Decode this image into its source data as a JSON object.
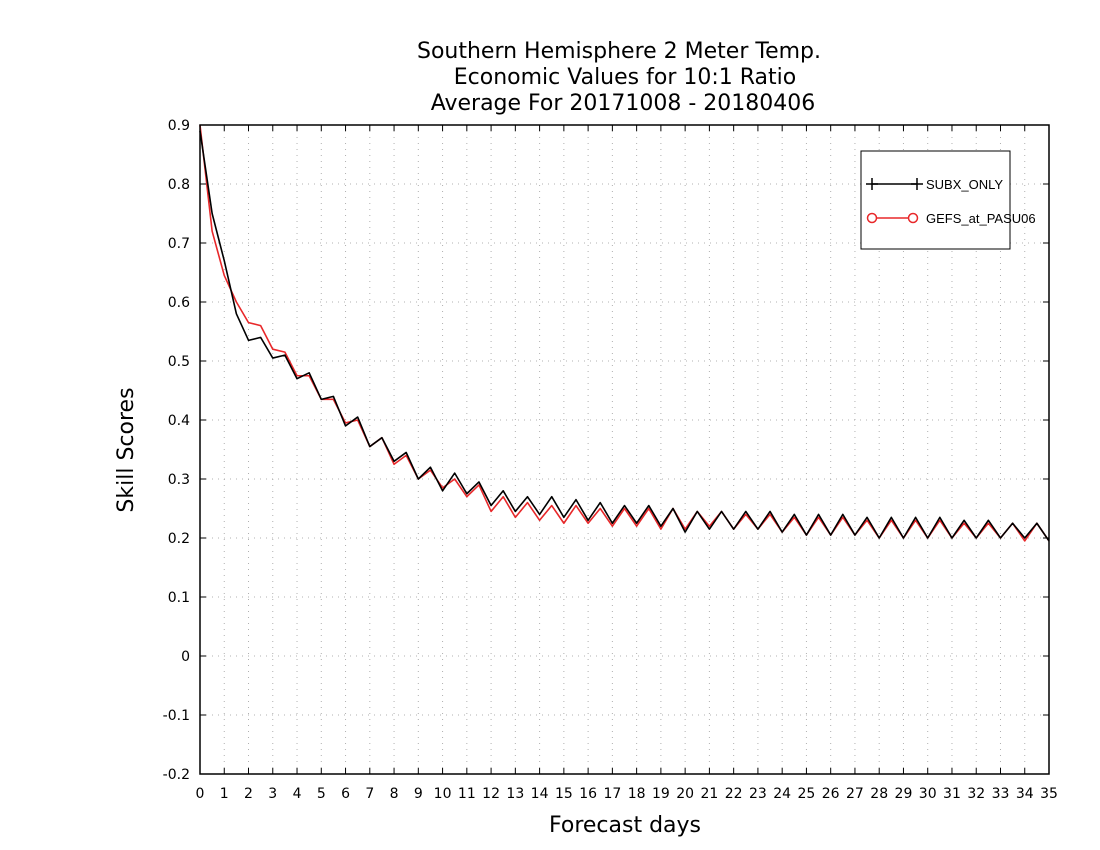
{
  "chart_data": {
    "type": "line",
    "title_lines": [
      "Southern Hemisphere 2 Meter Temp.",
      "Economic Values for 10:1 Ratio",
      "Average For 20171008 - 20180406"
    ],
    "xlabel": "Forecast days",
    "ylabel": "Skill Scores",
    "xlim": [
      0,
      35
    ],
    "ylim": [
      -0.2,
      0.9
    ],
    "x_ticks": [
      0,
      1,
      2,
      3,
      4,
      5,
      6,
      7,
      8,
      9,
      10,
      11,
      12,
      13,
      14,
      15,
      16,
      17,
      18,
      19,
      20,
      21,
      22,
      23,
      24,
      25,
      26,
      27,
      28,
      29,
      30,
      31,
      32,
      33,
      34,
      35
    ],
    "y_ticks": [
      -0.2,
      -0.1,
      0,
      0.1,
      0.2,
      0.3,
      0.4,
      0.5,
      0.6,
      0.7,
      0.8,
      0.9
    ],
    "y_tick_labels": [
      "-0.2",
      "-0.1",
      "0",
      "0.1",
      "0.2",
      "0.3",
      "0.4",
      "0.5",
      "0.6",
      "0.7",
      "0.8",
      "0.9"
    ],
    "grid": true,
    "legend_position": "top-right",
    "series": [
      {
        "name": "SUBX_ONLY",
        "color": "#000000",
        "marker": "plus",
        "x": [
          0,
          0.5,
          1,
          1.5,
          2,
          2.5,
          3,
          3.5,
          4,
          4.5,
          5,
          5.5,
          6,
          6.5,
          7,
          7.5,
          8,
          8.5,
          9,
          9.5,
          10,
          10.5,
          11,
          11.5,
          12,
          12.5,
          13,
          13.5,
          14,
          14.5,
          15,
          15.5,
          16,
          16.5,
          17,
          17.5,
          18,
          18.5,
          19,
          19.5,
          20,
          20.5,
          21,
          21.5,
          22,
          22.5,
          23,
          23.5,
          24,
          24.5,
          25,
          25.5,
          26,
          26.5,
          27,
          27.5,
          28,
          28.5,
          29,
          29.5,
          30,
          30.5,
          31,
          31.5,
          32,
          32.5,
          33,
          33.5,
          34,
          34.5,
          35
        ],
        "values": [
          0.89,
          0.75,
          0.67,
          0.58,
          0.535,
          0.54,
          0.505,
          0.51,
          0.47,
          0.48,
          0.435,
          0.44,
          0.39,
          0.405,
          0.355,
          0.37,
          0.33,
          0.345,
          0.3,
          0.32,
          0.28,
          0.31,
          0.275,
          0.295,
          0.255,
          0.28,
          0.245,
          0.27,
          0.24,
          0.27,
          0.235,
          0.265,
          0.23,
          0.26,
          0.225,
          0.255,
          0.225,
          0.255,
          0.22,
          0.25,
          0.21,
          0.245,
          0.215,
          0.245,
          0.215,
          0.245,
          0.215,
          0.245,
          0.21,
          0.24,
          0.205,
          0.24,
          0.205,
          0.24,
          0.205,
          0.235,
          0.2,
          0.235,
          0.2,
          0.235,
          0.2,
          0.235,
          0.2,
          0.23,
          0.2,
          0.23,
          0.2,
          0.225,
          0.2,
          0.225,
          0.195
        ]
      },
      {
        "name": "GEFS_at_PASU06",
        "color": "#e8282a",
        "marker": "circle",
        "x": [
          0,
          0.5,
          1,
          1.5,
          2,
          2.5,
          3,
          3.5,
          4,
          4.5,
          5,
          5.5,
          6,
          6.5,
          7,
          7.5,
          8,
          8.5,
          9,
          9.5,
          10,
          10.5,
          11,
          11.5,
          12,
          12.5,
          13,
          13.5,
          14,
          14.5,
          15,
          15.5,
          16,
          16.5,
          17,
          17.5,
          18,
          18.5,
          19,
          19.5,
          20,
          20.5,
          21,
          21.5,
          22,
          22.5,
          23,
          23.5,
          24,
          24.5,
          25,
          25.5,
          26,
          26.5,
          27,
          27.5,
          28,
          28.5,
          29,
          29.5,
          30,
          30.5,
          31,
          31.5,
          32,
          32.5,
          33,
          33.5,
          34,
          34.5,
          35
        ],
        "values": [
          0.9,
          0.72,
          0.645,
          0.6,
          0.565,
          0.56,
          0.52,
          0.515,
          0.475,
          0.475,
          0.435,
          0.435,
          0.395,
          0.4,
          0.355,
          0.37,
          0.325,
          0.34,
          0.3,
          0.315,
          0.285,
          0.3,
          0.27,
          0.29,
          0.245,
          0.27,
          0.235,
          0.26,
          0.23,
          0.255,
          0.225,
          0.255,
          0.225,
          0.25,
          0.22,
          0.25,
          0.22,
          0.25,
          0.215,
          0.25,
          0.215,
          0.245,
          0.22,
          0.245,
          0.215,
          0.24,
          0.215,
          0.24,
          0.21,
          0.235,
          0.205,
          0.235,
          0.205,
          0.235,
          0.205,
          0.23,
          0.2,
          0.23,
          0.2,
          0.23,
          0.2,
          0.23,
          0.2,
          0.225,
          0.2,
          0.225,
          0.2,
          0.225,
          0.195,
          0.225,
          0.195
        ]
      }
    ]
  }
}
